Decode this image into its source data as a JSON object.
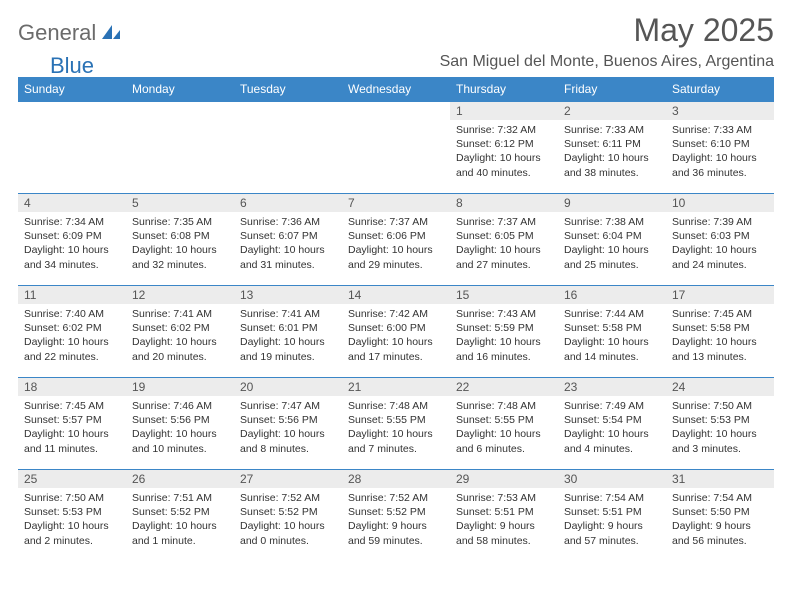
{
  "brand": {
    "part1": "General",
    "part2": "Blue"
  },
  "title": "May 2025",
  "location": "San Miguel del Monte, Buenos Aires, Argentina",
  "colors": {
    "header_bg": "#3b86c7",
    "header_text": "#ffffff",
    "daynum_bg": "#ececec",
    "daynum_text": "#555555",
    "body_text": "#333333",
    "title_text": "#555555",
    "logo_gray": "#6b6b6b",
    "logo_blue": "#2a72b5",
    "row_border": "#3b86c7",
    "page_bg": "#ffffff"
  },
  "font": {
    "family": "Arial",
    "title_size": 32,
    "location_size": 16,
    "header_size": 12,
    "cell_size": 10.5
  },
  "weekdays": [
    "Sunday",
    "Monday",
    "Tuesday",
    "Wednesday",
    "Thursday",
    "Friday",
    "Saturday"
  ],
  "grid": {
    "rows": 5,
    "cols": 7,
    "first_weekday_index": 4,
    "days_in_month": 31
  },
  "days": {
    "1": {
      "sunrise": "7:32 AM",
      "sunset": "6:12 PM",
      "daylight": "10 hours and 40 minutes."
    },
    "2": {
      "sunrise": "7:33 AM",
      "sunset": "6:11 PM",
      "daylight": "10 hours and 38 minutes."
    },
    "3": {
      "sunrise": "7:33 AM",
      "sunset": "6:10 PM",
      "daylight": "10 hours and 36 minutes."
    },
    "4": {
      "sunrise": "7:34 AM",
      "sunset": "6:09 PM",
      "daylight": "10 hours and 34 minutes."
    },
    "5": {
      "sunrise": "7:35 AM",
      "sunset": "6:08 PM",
      "daylight": "10 hours and 32 minutes."
    },
    "6": {
      "sunrise": "7:36 AM",
      "sunset": "6:07 PM",
      "daylight": "10 hours and 31 minutes."
    },
    "7": {
      "sunrise": "7:37 AM",
      "sunset": "6:06 PM",
      "daylight": "10 hours and 29 minutes."
    },
    "8": {
      "sunrise": "7:37 AM",
      "sunset": "6:05 PM",
      "daylight": "10 hours and 27 minutes."
    },
    "9": {
      "sunrise": "7:38 AM",
      "sunset": "6:04 PM",
      "daylight": "10 hours and 25 minutes."
    },
    "10": {
      "sunrise": "7:39 AM",
      "sunset": "6:03 PM",
      "daylight": "10 hours and 24 minutes."
    },
    "11": {
      "sunrise": "7:40 AM",
      "sunset": "6:02 PM",
      "daylight": "10 hours and 22 minutes."
    },
    "12": {
      "sunrise": "7:41 AM",
      "sunset": "6:02 PM",
      "daylight": "10 hours and 20 minutes."
    },
    "13": {
      "sunrise": "7:41 AM",
      "sunset": "6:01 PM",
      "daylight": "10 hours and 19 minutes."
    },
    "14": {
      "sunrise": "7:42 AM",
      "sunset": "6:00 PM",
      "daylight": "10 hours and 17 minutes."
    },
    "15": {
      "sunrise": "7:43 AM",
      "sunset": "5:59 PM",
      "daylight": "10 hours and 16 minutes."
    },
    "16": {
      "sunrise": "7:44 AM",
      "sunset": "5:58 PM",
      "daylight": "10 hours and 14 minutes."
    },
    "17": {
      "sunrise": "7:45 AM",
      "sunset": "5:58 PM",
      "daylight": "10 hours and 13 minutes."
    },
    "18": {
      "sunrise": "7:45 AM",
      "sunset": "5:57 PM",
      "daylight": "10 hours and 11 minutes."
    },
    "19": {
      "sunrise": "7:46 AM",
      "sunset": "5:56 PM",
      "daylight": "10 hours and 10 minutes."
    },
    "20": {
      "sunrise": "7:47 AM",
      "sunset": "5:56 PM",
      "daylight": "10 hours and 8 minutes."
    },
    "21": {
      "sunrise": "7:48 AM",
      "sunset": "5:55 PM",
      "daylight": "10 hours and 7 minutes."
    },
    "22": {
      "sunrise": "7:48 AM",
      "sunset": "5:55 PM",
      "daylight": "10 hours and 6 minutes."
    },
    "23": {
      "sunrise": "7:49 AM",
      "sunset": "5:54 PM",
      "daylight": "10 hours and 4 minutes."
    },
    "24": {
      "sunrise": "7:50 AM",
      "sunset": "5:53 PM",
      "daylight": "10 hours and 3 minutes."
    },
    "25": {
      "sunrise": "7:50 AM",
      "sunset": "5:53 PM",
      "daylight": "10 hours and 2 minutes."
    },
    "26": {
      "sunrise": "7:51 AM",
      "sunset": "5:52 PM",
      "daylight": "10 hours and 1 minute."
    },
    "27": {
      "sunrise": "7:52 AM",
      "sunset": "5:52 PM",
      "daylight": "10 hours and 0 minutes."
    },
    "28": {
      "sunrise": "7:52 AM",
      "sunset": "5:52 PM",
      "daylight": "9 hours and 59 minutes."
    },
    "29": {
      "sunrise": "7:53 AM",
      "sunset": "5:51 PM",
      "daylight": "9 hours and 58 minutes."
    },
    "30": {
      "sunrise": "7:54 AM",
      "sunset": "5:51 PM",
      "daylight": "9 hours and 57 minutes."
    },
    "31": {
      "sunrise": "7:54 AM",
      "sunset": "5:50 PM",
      "daylight": "9 hours and 56 minutes."
    }
  },
  "labels": {
    "sunrise": "Sunrise:",
    "sunset": "Sunset:",
    "daylight": "Daylight:"
  }
}
